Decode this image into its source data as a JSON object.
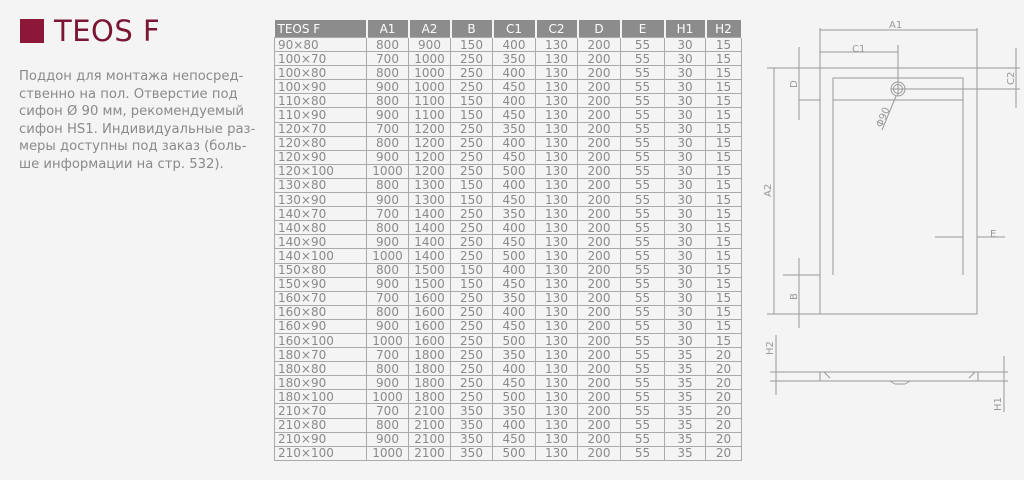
{
  "header": {
    "title": "TEOS F",
    "accent_color": "#8c1739"
  },
  "description": {
    "lines": [
      "Поддон для монтажа непосред-",
      "ственно на пол. Отверстие под",
      "сифон Ø 90 мм, рекомендуемый",
      "сифон HS1. Индивидуальные раз-",
      "меры доступны под заказ (боль-",
      "ше информации на стр. 532)."
    ]
  },
  "table": {
    "columns": [
      "TEOS F",
      "A1",
      "A2",
      "B",
      "C1",
      "C2",
      "D",
      "E",
      "H1",
      "H2"
    ],
    "rows": [
      [
        "90×80",
        "800",
        "900",
        "150",
        "400",
        "130",
        "200",
        "55",
        "30",
        "15"
      ],
      [
        "100×70",
        "700",
        "1000",
        "250",
        "350",
        "130",
        "200",
        "55",
        "30",
        "15"
      ],
      [
        "100×80",
        "800",
        "1000",
        "250",
        "400",
        "130",
        "200",
        "55",
        "30",
        "15"
      ],
      [
        "100×90",
        "900",
        "1000",
        "250",
        "450",
        "130",
        "200",
        "55",
        "30",
        "15"
      ],
      [
        "110×80",
        "800",
        "1100",
        "150",
        "400",
        "130",
        "200",
        "55",
        "30",
        "15"
      ],
      [
        "110×90",
        "900",
        "1100",
        "150",
        "450",
        "130",
        "200",
        "55",
        "30",
        "15"
      ],
      [
        "120×70",
        "700",
        "1200",
        "250",
        "350",
        "130",
        "200",
        "55",
        "30",
        "15"
      ],
      [
        "120×80",
        "800",
        "1200",
        "250",
        "400",
        "130",
        "200",
        "55",
        "30",
        "15"
      ],
      [
        "120×90",
        "900",
        "1200",
        "250",
        "450",
        "130",
        "200",
        "55",
        "30",
        "15"
      ],
      [
        "120×100",
        "1000",
        "1200",
        "250",
        "500",
        "130",
        "200",
        "55",
        "30",
        "15"
      ],
      [
        "130×80",
        "800",
        "1300",
        "150",
        "400",
        "130",
        "200",
        "55",
        "30",
        "15"
      ],
      [
        "130×90",
        "900",
        "1300",
        "150",
        "450",
        "130",
        "200",
        "55",
        "30",
        "15"
      ],
      [
        "140×70",
        "700",
        "1400",
        "250",
        "350",
        "130",
        "200",
        "55",
        "30",
        "15"
      ],
      [
        "140×80",
        "800",
        "1400",
        "250",
        "400",
        "130",
        "200",
        "55",
        "30",
        "15"
      ],
      [
        "140×90",
        "900",
        "1400",
        "250",
        "450",
        "130",
        "200",
        "55",
        "30",
        "15"
      ],
      [
        "140×100",
        "1000",
        "1400",
        "250",
        "500",
        "130",
        "200",
        "55",
        "30",
        "15"
      ],
      [
        "150×80",
        "800",
        "1500",
        "150",
        "400",
        "130",
        "200",
        "55",
        "30",
        "15"
      ],
      [
        "150×90",
        "900",
        "1500",
        "150",
        "450",
        "130",
        "200",
        "55",
        "30",
        "15"
      ],
      [
        "160×70",
        "700",
        "1600",
        "250",
        "350",
        "130",
        "200",
        "55",
        "30",
        "15"
      ],
      [
        "160×80",
        "800",
        "1600",
        "250",
        "400",
        "130",
        "200",
        "55",
        "30",
        "15"
      ],
      [
        "160×90",
        "900",
        "1600",
        "250",
        "450",
        "130",
        "200",
        "55",
        "30",
        "15"
      ],
      [
        "160×100",
        "1000",
        "1600",
        "250",
        "500",
        "130",
        "200",
        "55",
        "30",
        "15"
      ],
      [
        "180×70",
        "700",
        "1800",
        "250",
        "350",
        "130",
        "200",
        "55",
        "35",
        "20"
      ],
      [
        "180×80",
        "800",
        "1800",
        "250",
        "400",
        "130",
        "200",
        "55",
        "35",
        "20"
      ],
      [
        "180×90",
        "900",
        "1800",
        "250",
        "450",
        "130",
        "200",
        "55",
        "35",
        "20"
      ],
      [
        "180×100",
        "1000",
        "1800",
        "250",
        "500",
        "130",
        "200",
        "55",
        "35",
        "20"
      ],
      [
        "210×70",
        "700",
        "2100",
        "350",
        "350",
        "130",
        "200",
        "55",
        "35",
        "20"
      ],
      [
        "210×80",
        "800",
        "2100",
        "350",
        "400",
        "130",
        "200",
        "55",
        "35",
        "20"
      ],
      [
        "210×90",
        "900",
        "2100",
        "350",
        "450",
        "130",
        "200",
        "55",
        "35",
        "20"
      ],
      [
        "210×100",
        "1000",
        "2100",
        "350",
        "500",
        "130",
        "200",
        "55",
        "35",
        "20"
      ]
    ]
  },
  "diagram": {
    "labels": {
      "a1": "A1",
      "c1": "C1",
      "c2": "C2",
      "d": "D",
      "a2": "A2",
      "b": "B",
      "e": "E",
      "drain": "Φ90",
      "h1": "H1",
      "h2": "H2"
    }
  }
}
